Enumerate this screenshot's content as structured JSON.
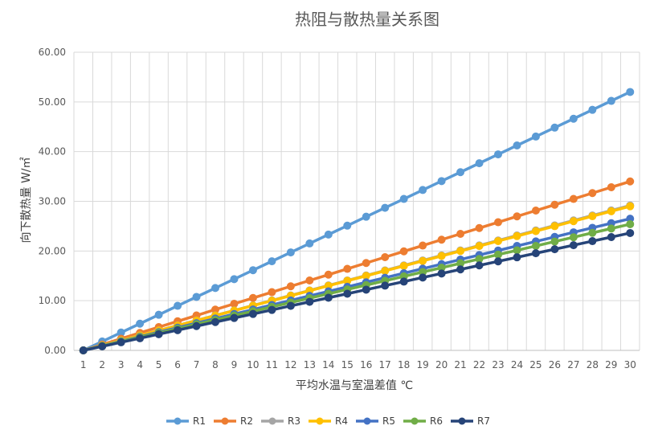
{
  "chart_data": {
    "type": "line",
    "title": "热阻与散热量关系图",
    "xlabel": "平均水温与室温差值 ℃",
    "ylabel": "向下散热量 W/㎡",
    "ylim": [
      0,
      60
    ],
    "y_ticks": [
      0,
      10,
      20,
      30,
      40,
      50,
      60
    ],
    "y_tick_labels": [
      "0.00",
      "10.00",
      "20.00",
      "30.00",
      "40.00",
      "50.00",
      "60.00"
    ],
    "grid": true,
    "legend_position": "bottom",
    "x": [
      1,
      2,
      3,
      4,
      5,
      6,
      7,
      8,
      9,
      10,
      11,
      12,
      13,
      14,
      15,
      16,
      17,
      18,
      19,
      20,
      21,
      22,
      23,
      24,
      25,
      26,
      27,
      28,
      29,
      30
    ],
    "series": [
      {
        "name": "R1",
        "color": "#5b9bd5",
        "values": [
          0,
          1.79,
          3.59,
          5.38,
          7.17,
          8.97,
          10.76,
          12.55,
          14.34,
          16.14,
          17.93,
          19.72,
          21.52,
          23.31,
          25.1,
          26.9,
          28.69,
          30.48,
          32.28,
          34.07,
          35.86,
          37.66,
          39.45,
          41.24,
          43.03,
          44.83,
          46.62,
          48.41,
          50.21,
          52.0
        ]
      },
      {
        "name": "R2",
        "color": "#ed7d31",
        "values": [
          0,
          1.17,
          2.35,
          3.52,
          4.69,
          5.86,
          7.03,
          8.21,
          9.38,
          10.55,
          11.72,
          12.9,
          14.07,
          15.24,
          16.41,
          17.59,
          18.76,
          19.93,
          21.1,
          22.28,
          23.45,
          24.62,
          25.79,
          26.97,
          28.14,
          29.31,
          30.48,
          31.66,
          32.83,
          34.0
        ]
      },
      {
        "name": "R3",
        "color": "#a5a5a5",
        "values": [
          0,
          1.01,
          2.01,
          3.02,
          4.02,
          5.03,
          6.03,
          7.04,
          8.04,
          9.05,
          10.06,
          11.06,
          12.07,
          13.07,
          14.08,
          15.08,
          16.09,
          17.1,
          18.1,
          19.11,
          20.11,
          21.12,
          22.12,
          23.13,
          24.13,
          25.14,
          26.15,
          27.15,
          28.16,
          29.16
        ]
      },
      {
        "name": "R4",
        "color": "#ffc000",
        "values": [
          0,
          1.0,
          2.0,
          3.0,
          4.0,
          5.0,
          6.0,
          7.0,
          8.0,
          9.0,
          10.0,
          11.0,
          12.0,
          13.0,
          14.0,
          15.0,
          16.0,
          17.0,
          18.0,
          19.0,
          20.0,
          21.0,
          22.0,
          23.0,
          24.0,
          25.0,
          26.0,
          27.0,
          28.0,
          29.0
        ]
      },
      {
        "name": "R5",
        "color": "#4472c4",
        "values": [
          0,
          0.91,
          1.83,
          2.74,
          3.66,
          4.57,
          5.48,
          6.4,
          7.31,
          8.22,
          9.14,
          10.05,
          10.97,
          11.88,
          12.79,
          13.71,
          14.62,
          15.53,
          16.45,
          17.36,
          18.28,
          19.19,
          20.1,
          21.02,
          21.93,
          22.84,
          23.76,
          24.67,
          25.59,
          26.5
        ]
      },
      {
        "name": "R6",
        "color": "#70ad47",
        "values": [
          0,
          0.88,
          1.75,
          2.63,
          3.5,
          4.38,
          5.26,
          6.13,
          7.01,
          7.88,
          8.76,
          9.63,
          10.51,
          11.39,
          12.26,
          13.14,
          14.01,
          14.89,
          15.77,
          16.64,
          17.52,
          18.39,
          19.27,
          20.14,
          21.02,
          21.9,
          22.77,
          23.65,
          24.52,
          25.4
        ]
      },
      {
        "name": "R7",
        "color": "#264478",
        "values": [
          0,
          0.81,
          1.63,
          2.44,
          3.26,
          4.07,
          4.89,
          5.7,
          6.52,
          7.33,
          8.14,
          8.96,
          9.77,
          10.59,
          11.4,
          12.22,
          13.03,
          13.84,
          14.66,
          15.47,
          16.29,
          17.1,
          17.92,
          18.73,
          19.55,
          20.36,
          21.17,
          21.99,
          22.8,
          23.62
        ]
      }
    ]
  }
}
